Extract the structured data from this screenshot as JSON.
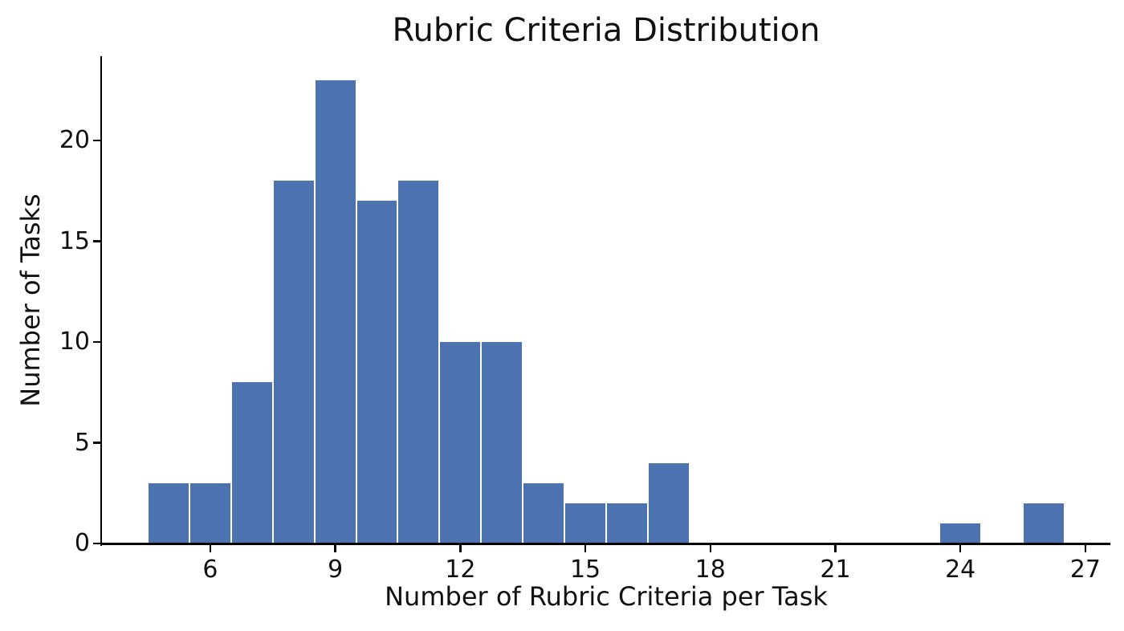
{
  "chart_data": {
    "type": "bar",
    "subtype": "histogram",
    "title": "Rubric Criteria Distribution",
    "xlabel": "Number of Rubric Criteria per Task",
    "ylabel": "Number of Tasks",
    "bin_width": 1,
    "bins": [
      {
        "x": 5,
        "count": 3
      },
      {
        "x": 6,
        "count": 3
      },
      {
        "x": 7,
        "count": 8
      },
      {
        "x": 8,
        "count": 18
      },
      {
        "x": 9,
        "count": 23
      },
      {
        "x": 10,
        "count": 17
      },
      {
        "x": 11,
        "count": 18
      },
      {
        "x": 12,
        "count": 10
      },
      {
        "x": 13,
        "count": 10
      },
      {
        "x": 14,
        "count": 3
      },
      {
        "x": 15,
        "count": 2
      },
      {
        "x": 16,
        "count": 2
      },
      {
        "x": 17,
        "count": 4
      },
      {
        "x": 24,
        "count": 1
      },
      {
        "x": 26,
        "count": 2
      }
    ],
    "xticks": [
      6,
      9,
      12,
      15,
      18,
      21,
      24,
      27
    ],
    "yticks": [
      0,
      5,
      10,
      15,
      20
    ],
    "xlim": [
      3.4,
      27.6
    ],
    "ylim": [
      0,
      24.15
    ],
    "grid": false,
    "legend": null,
    "colors": {
      "bar": "#4C72B0",
      "bar_edge": "#FFFFFF",
      "axis": "#000000",
      "text": "#111111"
    }
  }
}
